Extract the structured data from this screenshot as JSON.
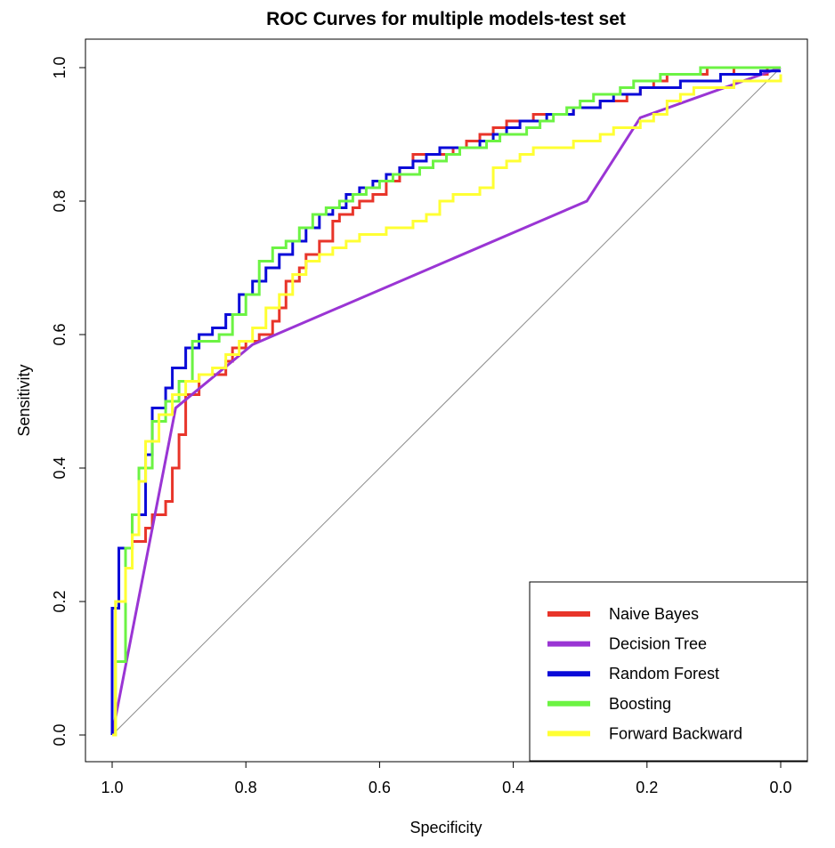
{
  "chart_data": {
    "type": "line",
    "title": "ROC Curves for multiple models-test set",
    "xlabel": "Specificity",
    "ylabel": "Sensitivity",
    "xlim": [
      1.0,
      0.0
    ],
    "ylim": [
      0.0,
      1.0
    ],
    "x_reversed": true,
    "grid": false,
    "legend_position": "bottom-right",
    "x_ticks": [
      {
        "value": 1.0,
        "label": "1.0"
      },
      {
        "value": 0.8,
        "label": "0.8"
      },
      {
        "value": 0.6,
        "label": "0.6"
      },
      {
        "value": 0.4,
        "label": "0.4"
      },
      {
        "value": 0.2,
        "label": "0.2"
      },
      {
        "value": 0.0,
        "label": "0.0"
      }
    ],
    "y_ticks": [
      {
        "value": 0.0,
        "label": "0.0"
      },
      {
        "value": 0.2,
        "label": "0.2"
      },
      {
        "value": 0.4,
        "label": "0.4"
      },
      {
        "value": 0.6,
        "label": "0.6"
      },
      {
        "value": 0.8,
        "label": "0.8"
      },
      {
        "value": 1.0,
        "label": "1.0"
      }
    ],
    "reference_line": {
      "x": [
        1.0,
        0.0
      ],
      "y": [
        0.0,
        1.0
      ],
      "color": "#8c8c8c"
    },
    "series": [
      {
        "name": "Naive Bayes",
        "color": "#e8352a",
        "step": true,
        "x": [
          1.0,
          1.0,
          0.99,
          0.97,
          0.95,
          0.94,
          0.92,
          0.91,
          0.9,
          0.89,
          0.87,
          0.85,
          0.83,
          0.82,
          0.8,
          0.78,
          0.76,
          0.75,
          0.74,
          0.72,
          0.71,
          0.69,
          0.67,
          0.66,
          0.64,
          0.63,
          0.61,
          0.59,
          0.57,
          0.55,
          0.53,
          0.51,
          0.49,
          0.47,
          0.45,
          0.43,
          0.41,
          0.39,
          0.37,
          0.35,
          0.33,
          0.31,
          0.29,
          0.27,
          0.25,
          0.23,
          0.21,
          0.19,
          0.17,
          0.15,
          0.13,
          0.11,
          0.09,
          0.07,
          0.05,
          0.02,
          0.0
        ],
        "y": [
          0.0,
          0.19,
          0.28,
          0.29,
          0.31,
          0.33,
          0.35,
          0.4,
          0.45,
          0.51,
          0.54,
          0.54,
          0.56,
          0.58,
          0.59,
          0.6,
          0.62,
          0.64,
          0.68,
          0.7,
          0.72,
          0.74,
          0.77,
          0.78,
          0.79,
          0.8,
          0.81,
          0.83,
          0.85,
          0.87,
          0.87,
          0.87,
          0.88,
          0.89,
          0.9,
          0.91,
          0.92,
          0.92,
          0.93,
          0.93,
          0.93,
          0.94,
          0.94,
          0.95,
          0.95,
          0.96,
          0.97,
          0.98,
          0.99,
          0.99,
          0.99,
          1.0,
          1.0,
          0.99,
          0.99,
          1.0,
          1.0
        ]
      },
      {
        "name": "Decision Tree",
        "color": "#9a35d4",
        "step": false,
        "x": [
          1.0,
          0.905,
          0.79,
          0.29,
          0.21,
          0.0
        ],
        "y": [
          0.0,
          0.49,
          0.585,
          0.8,
          0.925,
          1.0
        ]
      },
      {
        "name": "Random Forest",
        "color": "#0a0ad8",
        "step": true,
        "x": [
          1.0,
          1.0,
          0.99,
          0.97,
          0.95,
          0.94,
          0.92,
          0.91,
          0.89,
          0.87,
          0.85,
          0.83,
          0.81,
          0.79,
          0.77,
          0.75,
          0.73,
          0.71,
          0.69,
          0.67,
          0.65,
          0.63,
          0.61,
          0.59,
          0.57,
          0.55,
          0.53,
          0.51,
          0.49,
          0.47,
          0.45,
          0.43,
          0.41,
          0.39,
          0.37,
          0.35,
          0.33,
          0.31,
          0.29,
          0.27,
          0.25,
          0.23,
          0.21,
          0.19,
          0.17,
          0.15,
          0.13,
          0.11,
          0.09,
          0.07,
          0.05,
          0.03,
          0.0
        ],
        "y": [
          0.0,
          0.19,
          0.28,
          0.33,
          0.42,
          0.49,
          0.52,
          0.55,
          0.58,
          0.6,
          0.61,
          0.63,
          0.66,
          0.68,
          0.7,
          0.72,
          0.74,
          0.76,
          0.78,
          0.79,
          0.81,
          0.82,
          0.83,
          0.84,
          0.85,
          0.86,
          0.87,
          0.88,
          0.88,
          0.88,
          0.89,
          0.9,
          0.91,
          0.92,
          0.92,
          0.93,
          0.93,
          0.94,
          0.94,
          0.95,
          0.96,
          0.96,
          0.97,
          0.97,
          0.97,
          0.98,
          0.98,
          0.98,
          0.99,
          0.99,
          0.99,
          0.995,
          0.995
        ]
      },
      {
        "name": "Boosting",
        "color": "#6cf343",
        "step": true,
        "x": [
          1.0,
          0.995,
          0.98,
          0.97,
          0.96,
          0.94,
          0.92,
          0.9,
          0.88,
          0.86,
          0.84,
          0.82,
          0.8,
          0.78,
          0.76,
          0.74,
          0.72,
          0.7,
          0.68,
          0.66,
          0.64,
          0.62,
          0.6,
          0.58,
          0.56,
          0.54,
          0.52,
          0.5,
          0.48,
          0.46,
          0.44,
          0.42,
          0.4,
          0.38,
          0.36,
          0.34,
          0.32,
          0.3,
          0.28,
          0.26,
          0.24,
          0.22,
          0.2,
          0.18,
          0.16,
          0.14,
          0.12,
          0.1,
          0.08,
          0.06,
          0.04,
          0.02,
          0.0
        ],
        "y": [
          0.0,
          0.11,
          0.28,
          0.33,
          0.4,
          0.47,
          0.5,
          0.53,
          0.59,
          0.59,
          0.6,
          0.63,
          0.66,
          0.71,
          0.73,
          0.74,
          0.76,
          0.78,
          0.79,
          0.8,
          0.81,
          0.82,
          0.83,
          0.84,
          0.84,
          0.85,
          0.86,
          0.87,
          0.88,
          0.88,
          0.89,
          0.9,
          0.9,
          0.91,
          0.92,
          0.93,
          0.94,
          0.95,
          0.96,
          0.96,
          0.97,
          0.98,
          0.98,
          0.99,
          0.99,
          0.99,
          1.0,
          1.0,
          1.0,
          1.0,
          1.0,
          1.0,
          1.0
        ]
      },
      {
        "name": "Forward Backward",
        "color": "#ffff33",
        "step": true,
        "x": [
          1.0,
          0.995,
          0.98,
          0.97,
          0.96,
          0.95,
          0.93,
          0.91,
          0.89,
          0.87,
          0.85,
          0.83,
          0.81,
          0.79,
          0.77,
          0.75,
          0.73,
          0.71,
          0.69,
          0.67,
          0.65,
          0.63,
          0.61,
          0.59,
          0.57,
          0.55,
          0.53,
          0.51,
          0.49,
          0.47,
          0.45,
          0.43,
          0.41,
          0.39,
          0.37,
          0.35,
          0.33,
          0.31,
          0.29,
          0.27,
          0.25,
          0.23,
          0.21,
          0.19,
          0.17,
          0.15,
          0.13,
          0.11,
          0.09,
          0.07,
          0.05,
          0.03,
          0.0
        ],
        "y": [
          0.0,
          0.2,
          0.25,
          0.3,
          0.38,
          0.44,
          0.48,
          0.51,
          0.53,
          0.54,
          0.55,
          0.57,
          0.59,
          0.61,
          0.64,
          0.66,
          0.69,
          0.71,
          0.72,
          0.73,
          0.74,
          0.75,
          0.75,
          0.76,
          0.76,
          0.77,
          0.78,
          0.8,
          0.81,
          0.81,
          0.82,
          0.85,
          0.86,
          0.87,
          0.88,
          0.88,
          0.88,
          0.89,
          0.89,
          0.9,
          0.91,
          0.91,
          0.92,
          0.93,
          0.95,
          0.96,
          0.97,
          0.97,
          0.97,
          0.98,
          0.98,
          0.98,
          0.99
        ]
      }
    ]
  }
}
